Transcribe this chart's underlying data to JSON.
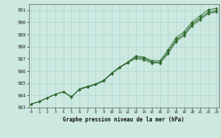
{
  "title": "Graphe pression niveau de la mer (hPa)",
  "background_color": "#cce8e0",
  "grid_color": "#aad4cc",
  "line_color": "#2d6a2d",
  "x_values": [
    0,
    1,
    2,
    3,
    4,
    5,
    6,
    7,
    8,
    9,
    10,
    11,
    12,
    13,
    14,
    15,
    16,
    17,
    18,
    19,
    20,
    21,
    22,
    23
  ],
  "series1": [
    983.3,
    983.5,
    983.8,
    984.1,
    984.3,
    983.85,
    984.55,
    984.75,
    984.95,
    985.25,
    985.85,
    986.35,
    986.75,
    987.25,
    987.15,
    986.85,
    986.85,
    987.75,
    988.75,
    989.25,
    990.05,
    990.55,
    991.05,
    991.15
  ],
  "series2": [
    983.3,
    983.5,
    983.8,
    984.1,
    984.3,
    983.9,
    984.5,
    984.7,
    984.9,
    985.2,
    985.8,
    986.3,
    986.7,
    987.15,
    987.1,
    986.75,
    986.75,
    987.6,
    988.6,
    989.1,
    989.9,
    990.4,
    990.9,
    991.0
  ],
  "series3": [
    983.3,
    983.5,
    983.8,
    984.1,
    984.3,
    983.9,
    984.5,
    984.7,
    984.9,
    985.2,
    985.8,
    986.3,
    986.7,
    987.1,
    987.0,
    986.7,
    986.7,
    987.5,
    988.5,
    989.0,
    989.8,
    990.3,
    990.8,
    990.9
  ],
  "series4": [
    983.3,
    983.5,
    983.8,
    984.1,
    984.3,
    983.9,
    984.5,
    984.7,
    984.9,
    985.2,
    985.8,
    986.3,
    986.7,
    987.0,
    986.9,
    986.65,
    986.65,
    987.4,
    988.4,
    988.9,
    989.7,
    990.2,
    990.7,
    990.85
  ],
  "ylim": [
    983.0,
    991.5
  ],
  "yticks": [
    983,
    984,
    985,
    986,
    987,
    988,
    989,
    990,
    991
  ],
  "xticks": [
    0,
    1,
    2,
    3,
    4,
    5,
    6,
    7,
    8,
    9,
    10,
    11,
    12,
    13,
    14,
    15,
    16,
    17,
    18,
    19,
    20,
    21,
    22,
    23
  ],
  "xlim": [
    -0.3,
    23.3
  ]
}
